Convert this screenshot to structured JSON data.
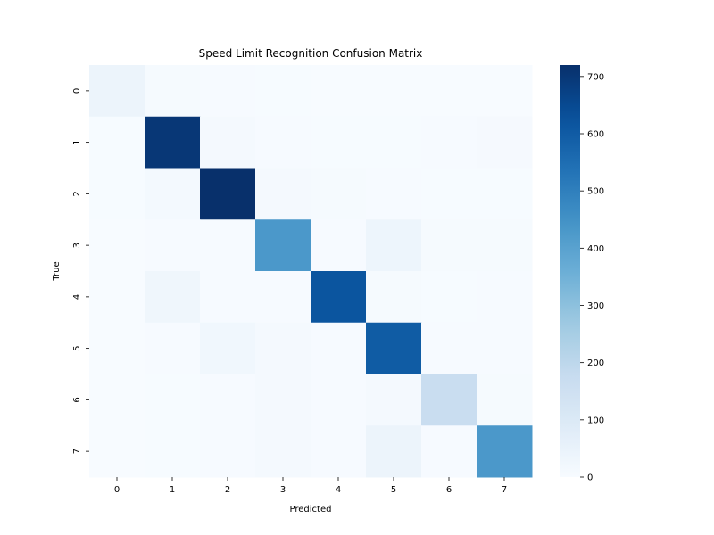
{
  "chart_data": {
    "type": "heatmap",
    "title": "Speed Limit Recognition Confusion Matrix",
    "xlabel": "Predicted",
    "ylabel": "True",
    "x_categories": [
      "0",
      "1",
      "2",
      "3",
      "4",
      "5",
      "6",
      "7"
    ],
    "y_categories": [
      "0",
      "1",
      "2",
      "3",
      "4",
      "5",
      "6",
      "7"
    ],
    "matrix": [
      [
        40,
        6,
        3,
        2,
        1,
        1,
        1,
        1
      ],
      [
        2,
        700,
        12,
        3,
        2,
        2,
        3,
        9
      ],
      [
        2,
        14,
        720,
        10,
        8,
        3,
        2,
        2
      ],
      [
        1,
        4,
        3,
        430,
        5,
        35,
        8,
        7
      ],
      [
        1,
        30,
        5,
        3,
        620,
        6,
        2,
        3
      ],
      [
        1,
        3,
        25,
        10,
        5,
        600,
        3,
        3
      ],
      [
        1,
        2,
        3,
        10,
        5,
        12,
        170,
        6
      ],
      [
        1,
        2,
        4,
        12,
        5,
        40,
        3,
        430
      ]
    ],
    "colorscale": "Blues",
    "color_range": [
      0,
      720
    ],
    "colorbar_ticks": [
      0,
      100,
      200,
      300,
      400,
      500,
      600,
      700
    ],
    "grid": false
  }
}
